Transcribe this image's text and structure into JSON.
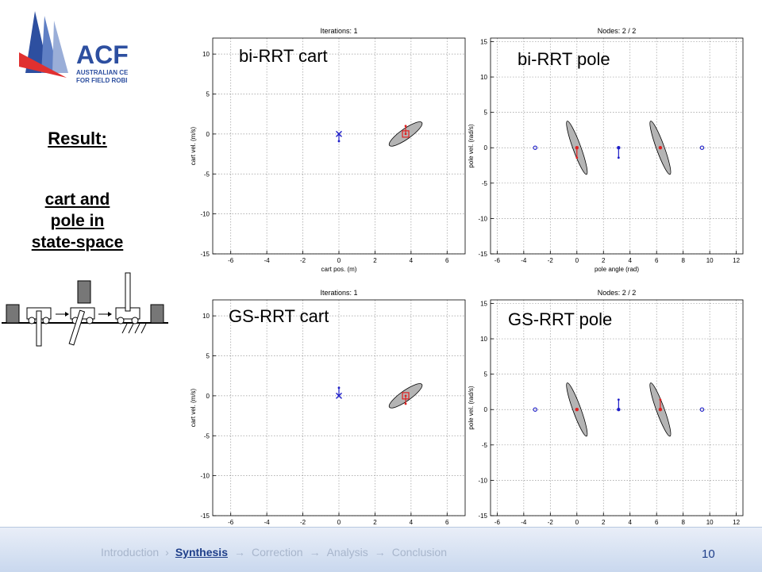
{
  "logo": {
    "acronym": "ACF",
    "line1": "AUSTRALIAN CE",
    "line2": "FOR FIELD ROBI"
  },
  "sidebar": {
    "result_label": "Result:",
    "description_lines": [
      "cart and",
      "pole in",
      "state-space"
    ]
  },
  "footer": {
    "nav": [
      {
        "label": "Introduction",
        "sep": "›",
        "active": false
      },
      {
        "label": "Synthesis",
        "sep": "→",
        "active": true
      },
      {
        "label": "Correction",
        "sep": "→",
        "active": false
      },
      {
        "label": "Analysis",
        "sep": "→",
        "active": false
      },
      {
        "label": "Conclusion",
        "sep": "",
        "active": false
      }
    ],
    "page_number": "10"
  },
  "colors": {
    "tree_blue": "#1e1ec8",
    "tree_red": "#e02020",
    "ellipse_fill": "#b4b4b4",
    "footer_text": "#a8b6cc",
    "footer_active": "#1f3f8a"
  },
  "chart_data": [
    {
      "type": "scatter",
      "overlay_label": "bi-RRT cart",
      "title": "Iterations: 1",
      "xlabel": "cart pos. (m)",
      "ylabel": "cart vel. (m/s)",
      "xlim": [
        -7,
        7
      ],
      "ylim": [
        -15,
        12
      ],
      "xticks": [
        -6,
        -4,
        -2,
        0,
        2,
        4,
        6
      ],
      "yticks": [
        10,
        5,
        0,
        -5,
        -10,
        -15
      ],
      "grid": true,
      "ellipses": [
        {
          "cx": 3.7,
          "cy": 0,
          "rx": 1.1,
          "ry": 0.65,
          "angle_deg": -35
        }
      ],
      "markers": [
        {
          "x": 0,
          "y": 0,
          "symbol": "x",
          "color": "blue"
        },
        {
          "x": 3.7,
          "y": 0,
          "symbol": "square",
          "color": "red"
        }
      ],
      "segments": [
        {
          "x1": 0,
          "y1": 0,
          "x2": 0,
          "y2": -0.9,
          "color": "blue"
        },
        {
          "x1": 3.7,
          "y1": 0,
          "x2": 3.7,
          "y2": 1.0,
          "color": "red"
        }
      ]
    },
    {
      "type": "scatter",
      "overlay_label": "bi-RRT pole",
      "title": "Nodes: 2 / 2",
      "xlabel": "pole angle (rad)",
      "ylabel": "pole vel. (rad/s)",
      "xlim": [
        -6.5,
        12.5
      ],
      "ylim": [
        -15,
        15.5
      ],
      "xticks": [
        -6,
        -4,
        -2,
        0,
        2,
        4,
        6,
        8,
        10,
        12
      ],
      "yticks": [
        15,
        10,
        5,
        0,
        -5,
        -10,
        -15
      ],
      "grid": true,
      "ellipses": [
        {
          "cx": 0,
          "cy": 0,
          "rx": 0.3,
          "ry": 4.0,
          "angle_deg": -20
        },
        {
          "cx": 6.28,
          "cy": 0,
          "rx": 0.3,
          "ry": 4.0,
          "angle_deg": -20
        }
      ],
      "markers": [
        {
          "x": -3.14,
          "y": 0,
          "symbol": "circle",
          "color": "blue"
        },
        {
          "x": 0,
          "y": 0,
          "symbol": "dot",
          "color": "red"
        },
        {
          "x": 3.14,
          "y": 0,
          "symbol": "dot",
          "color": "blue"
        },
        {
          "x": 6.28,
          "y": 0,
          "symbol": "dot",
          "color": "red"
        },
        {
          "x": 9.42,
          "y": 0,
          "symbol": "circle",
          "color": "blue"
        }
      ],
      "segments": [
        {
          "x1": 0,
          "y1": 0,
          "x2": 0,
          "y2": -1.4,
          "color": "red"
        },
        {
          "x1": 3.14,
          "y1": 0,
          "x2": 3.14,
          "y2": -1.4,
          "color": "blue"
        }
      ]
    },
    {
      "type": "scatter",
      "overlay_label": "GS-RRT cart",
      "title": "Iterations: 1",
      "xlabel": "cart pos. (m)",
      "ylabel": "cart vel. (m/s)",
      "xlim": [
        -7,
        7
      ],
      "ylim": [
        -15,
        12
      ],
      "xticks": [
        -6,
        -4,
        -2,
        0,
        2,
        4,
        6
      ],
      "yticks": [
        10,
        5,
        0,
        -5,
        -10,
        -15
      ],
      "grid": true,
      "ellipses": [
        {
          "cx": 3.7,
          "cy": 0,
          "rx": 1.1,
          "ry": 0.65,
          "angle_deg": -35
        }
      ],
      "markers": [
        {
          "x": 0,
          "y": 0,
          "symbol": "x",
          "color": "blue"
        },
        {
          "x": 3.7,
          "y": 0,
          "symbol": "square",
          "color": "red"
        }
      ],
      "segments": [
        {
          "x1": 0,
          "y1": 0,
          "x2": 0,
          "y2": 1.0,
          "color": "blue"
        },
        {
          "x1": 3.7,
          "y1": 0,
          "x2": 3.7,
          "y2": -1.0,
          "color": "red"
        }
      ]
    },
    {
      "type": "scatter",
      "overlay_label": "GS-RRT pole",
      "title": "Nodes: 2 / 2",
      "xlabel": "pole angle (rad)",
      "ylabel": "pole vel. (rad/s)",
      "xlim": [
        -6.5,
        12.5
      ],
      "ylim": [
        -15,
        15.5
      ],
      "xticks": [
        -6,
        -4,
        -2,
        0,
        2,
        4,
        6,
        8,
        10,
        12
      ],
      "yticks": [
        15,
        10,
        5,
        0,
        -5,
        -10,
        -15
      ],
      "grid": true,
      "ellipses": [
        {
          "cx": 0,
          "cy": 0,
          "rx": 0.3,
          "ry": 4.0,
          "angle_deg": -20
        },
        {
          "cx": 6.28,
          "cy": 0,
          "rx": 0.3,
          "ry": 4.0,
          "angle_deg": -20
        }
      ],
      "markers": [
        {
          "x": -3.14,
          "y": 0,
          "symbol": "circle",
          "color": "blue"
        },
        {
          "x": 0,
          "y": 0,
          "symbol": "dot",
          "color": "red"
        },
        {
          "x": 3.14,
          "y": 0,
          "symbol": "dot",
          "color": "blue"
        },
        {
          "x": 6.28,
          "y": 0,
          "symbol": "dot",
          "color": "red"
        },
        {
          "x": 9.42,
          "y": 0,
          "symbol": "circle",
          "color": "blue"
        }
      ],
      "segments": [
        {
          "x1": 3.14,
          "y1": 0,
          "x2": 3.14,
          "y2": 1.4,
          "color": "blue"
        },
        {
          "x1": 6.28,
          "y1": 0,
          "x2": 6.28,
          "y2": 1.4,
          "color": "red"
        }
      ]
    }
  ]
}
